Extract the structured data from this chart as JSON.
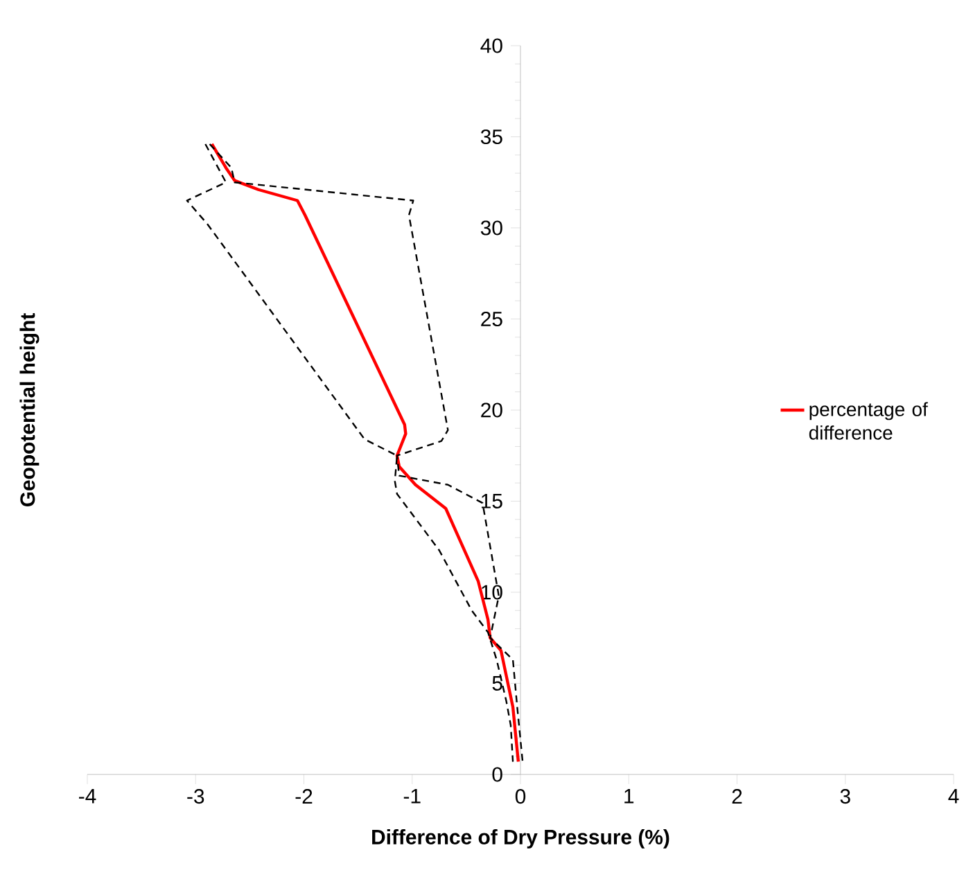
{
  "chart_data": {
    "type": "line",
    "xlabel": "Difference of Dry Pressure (%)",
    "ylabel": "Geopotential height",
    "xlim": [
      -4,
      4
    ],
    "xticks": [
      -4,
      -3,
      -2,
      -1,
      0,
      1,
      2,
      3,
      4
    ],
    "ylim": [
      0,
      40
    ],
    "yticks": [
      0,
      5,
      10,
      15,
      20,
      25,
      30,
      35,
      40
    ],
    "grid": false,
    "legend": "right",
    "marker": "none",
    "series": [
      {
        "name": "percentage of difference",
        "color": "#ff0000",
        "line_style": "solid",
        "x": [
          -2.85,
          -2.72,
          -2.64,
          -2.42,
          -2.06,
          -1.99,
          -1.07,
          -1.06,
          -1.14,
          -1.12,
          -0.97,
          -0.69,
          -0.39,
          -0.3,
          -0.28,
          -0.18,
          -0.07,
          -0.02
        ],
        "values": [
          34.6,
          33.3,
          32.6,
          32.1,
          31.5,
          30.7,
          19.2,
          18.7,
          17.5,
          16.9,
          15.9,
          14.6,
          10.6,
          8.5,
          7.5,
          6.8,
          3.7,
          0.7
        ]
      },
      {
        "color": "#000000",
        "line_style": "dashed",
        "x": [
          -2.91,
          -2.72,
          -3.08,
          -2.89,
          -1.44,
          -1.14,
          -1.16,
          -1.14,
          -0.75,
          -0.45,
          -0.3,
          -0.22,
          -0.13,
          -0.09,
          -0.07
        ],
        "values": [
          34.6,
          32.5,
          31.5,
          30.2,
          18.4,
          17.5,
          16.1,
          15.4,
          12.3,
          9.0,
          7.8,
          6.3,
          4.0,
          2.7,
          0.7
        ]
      },
      {
        "color": "#000000",
        "line_style": "dashed",
        "x": [
          -2.87,
          -2.67,
          -2.64,
          -0.99,
          -1.03,
          -0.67,
          -0.73,
          -1.14,
          -1.12,
          -0.67,
          -0.35,
          -0.2,
          -0.28,
          -0.07,
          -0.03,
          0.02
        ],
        "values": [
          34.6,
          33.3,
          32.5,
          31.5,
          30.7,
          18.9,
          18.3,
          17.5,
          16.4,
          15.9,
          14.9,
          9.8,
          7.5,
          6.3,
          3.7,
          0.7
        ]
      }
    ]
  }
}
